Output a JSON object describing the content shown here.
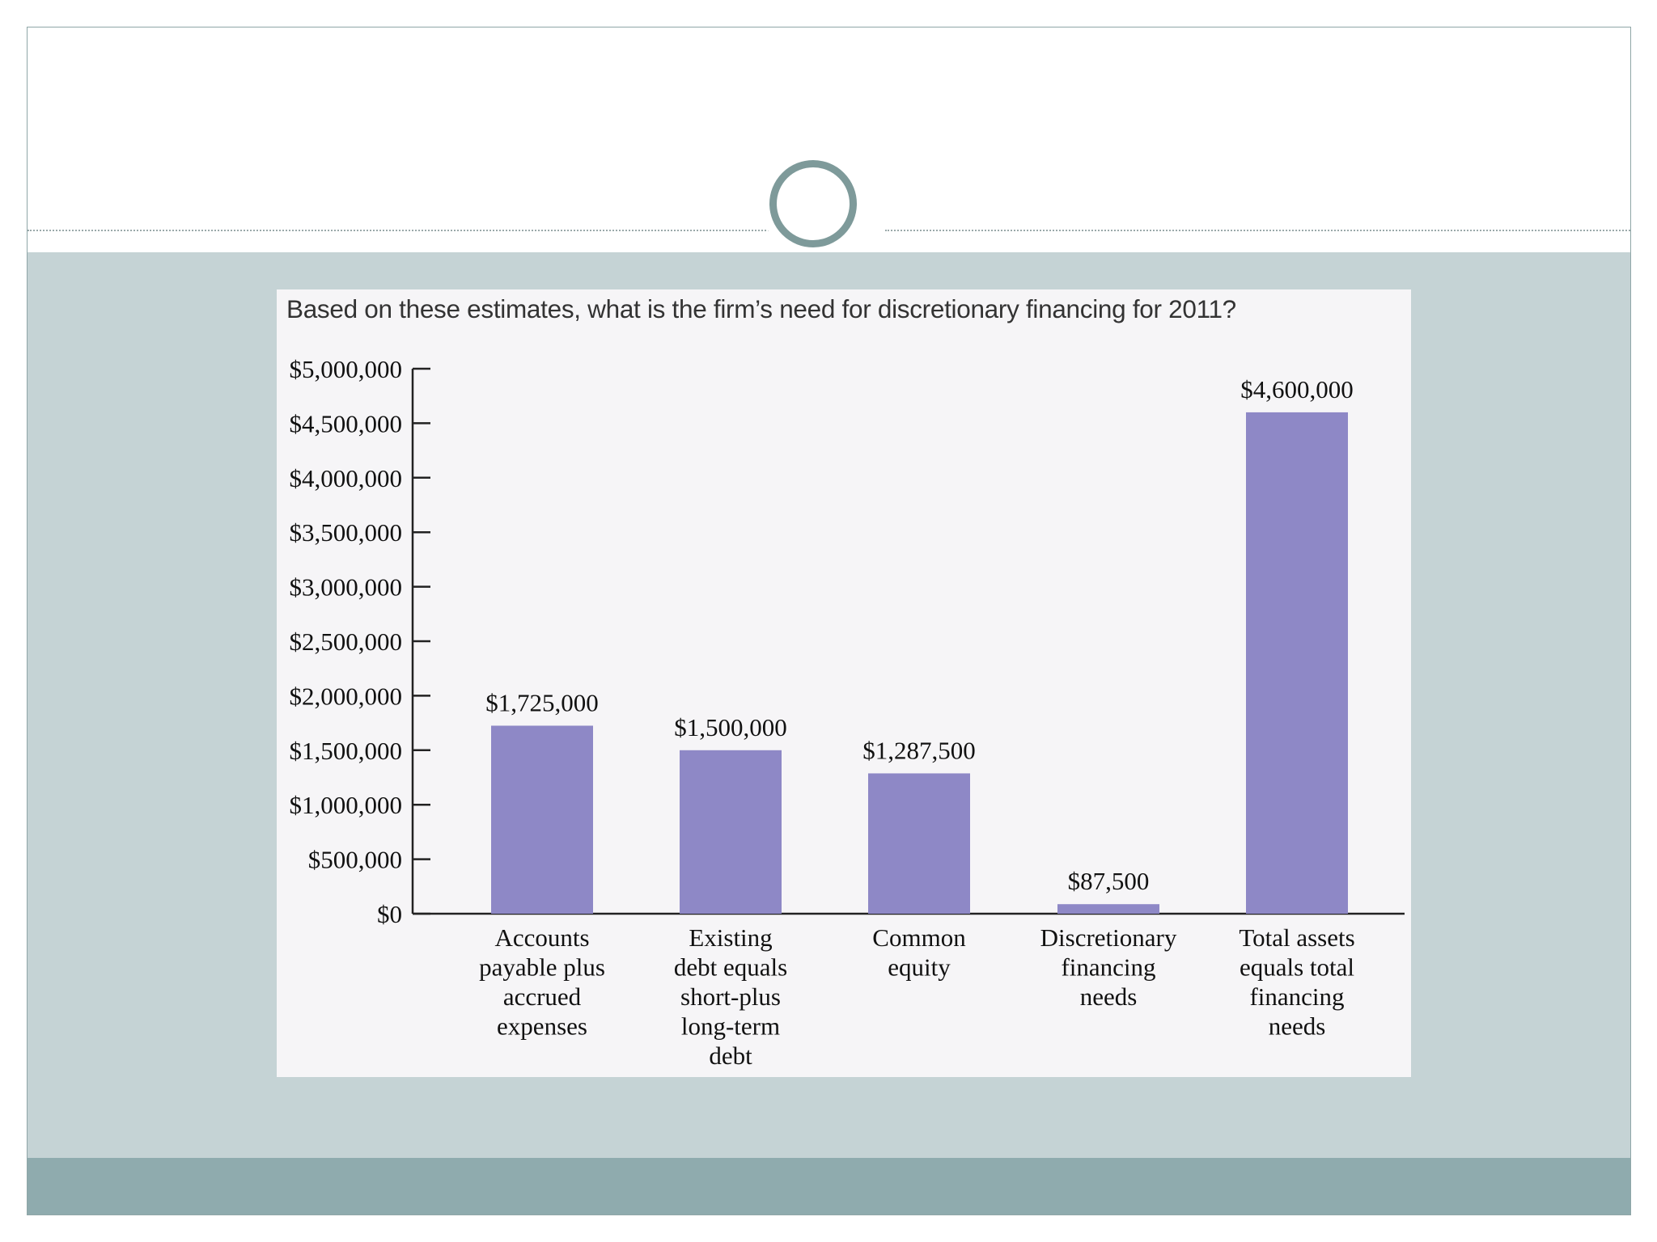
{
  "slide": {
    "question": "Based on these estimates, what is the firm’s need for discretionary financing for 2011?"
  },
  "colors": {
    "bar": "#8e88c6",
    "panel": "#f6f5f7",
    "band": "#c5d3d5",
    "footer": "#8fabae",
    "ring": "#7e9a9a"
  },
  "chart_data": {
    "type": "bar",
    "categories": [
      [
        "Accounts",
        "payable plus",
        "accrued",
        "expenses"
      ],
      [
        "Existing",
        "debt equals",
        "short-plus",
        "long-term",
        "debt"
      ],
      [
        "Common",
        "equity"
      ],
      [
        "Discretionary",
        "financing",
        "needs"
      ],
      [
        "Total assets",
        "equals total",
        "financing",
        "needs"
      ]
    ],
    "values": [
      1725000,
      1500000,
      1287500,
      87500,
      4600000
    ],
    "value_labels": [
      "$1,725,000",
      "$1,500,000",
      "$1,287,500",
      "$87,500",
      "$4,600,000"
    ],
    "y_ticks": [
      0,
      500000,
      1000000,
      1500000,
      2000000,
      2500000,
      3000000,
      3500000,
      4000000,
      4500000,
      5000000
    ],
    "y_tick_labels": [
      "$0",
      "$500,000",
      "$1,000,000",
      "$1,500,000",
      "$2,000,000",
      "$2,500,000",
      "$3,000,000",
      "$3,500,000",
      "$4,000,000",
      "$4,500,000",
      "$5,000,000"
    ],
    "ylim": [
      0,
      5000000
    ],
    "grid": false,
    "legend": "none"
  }
}
